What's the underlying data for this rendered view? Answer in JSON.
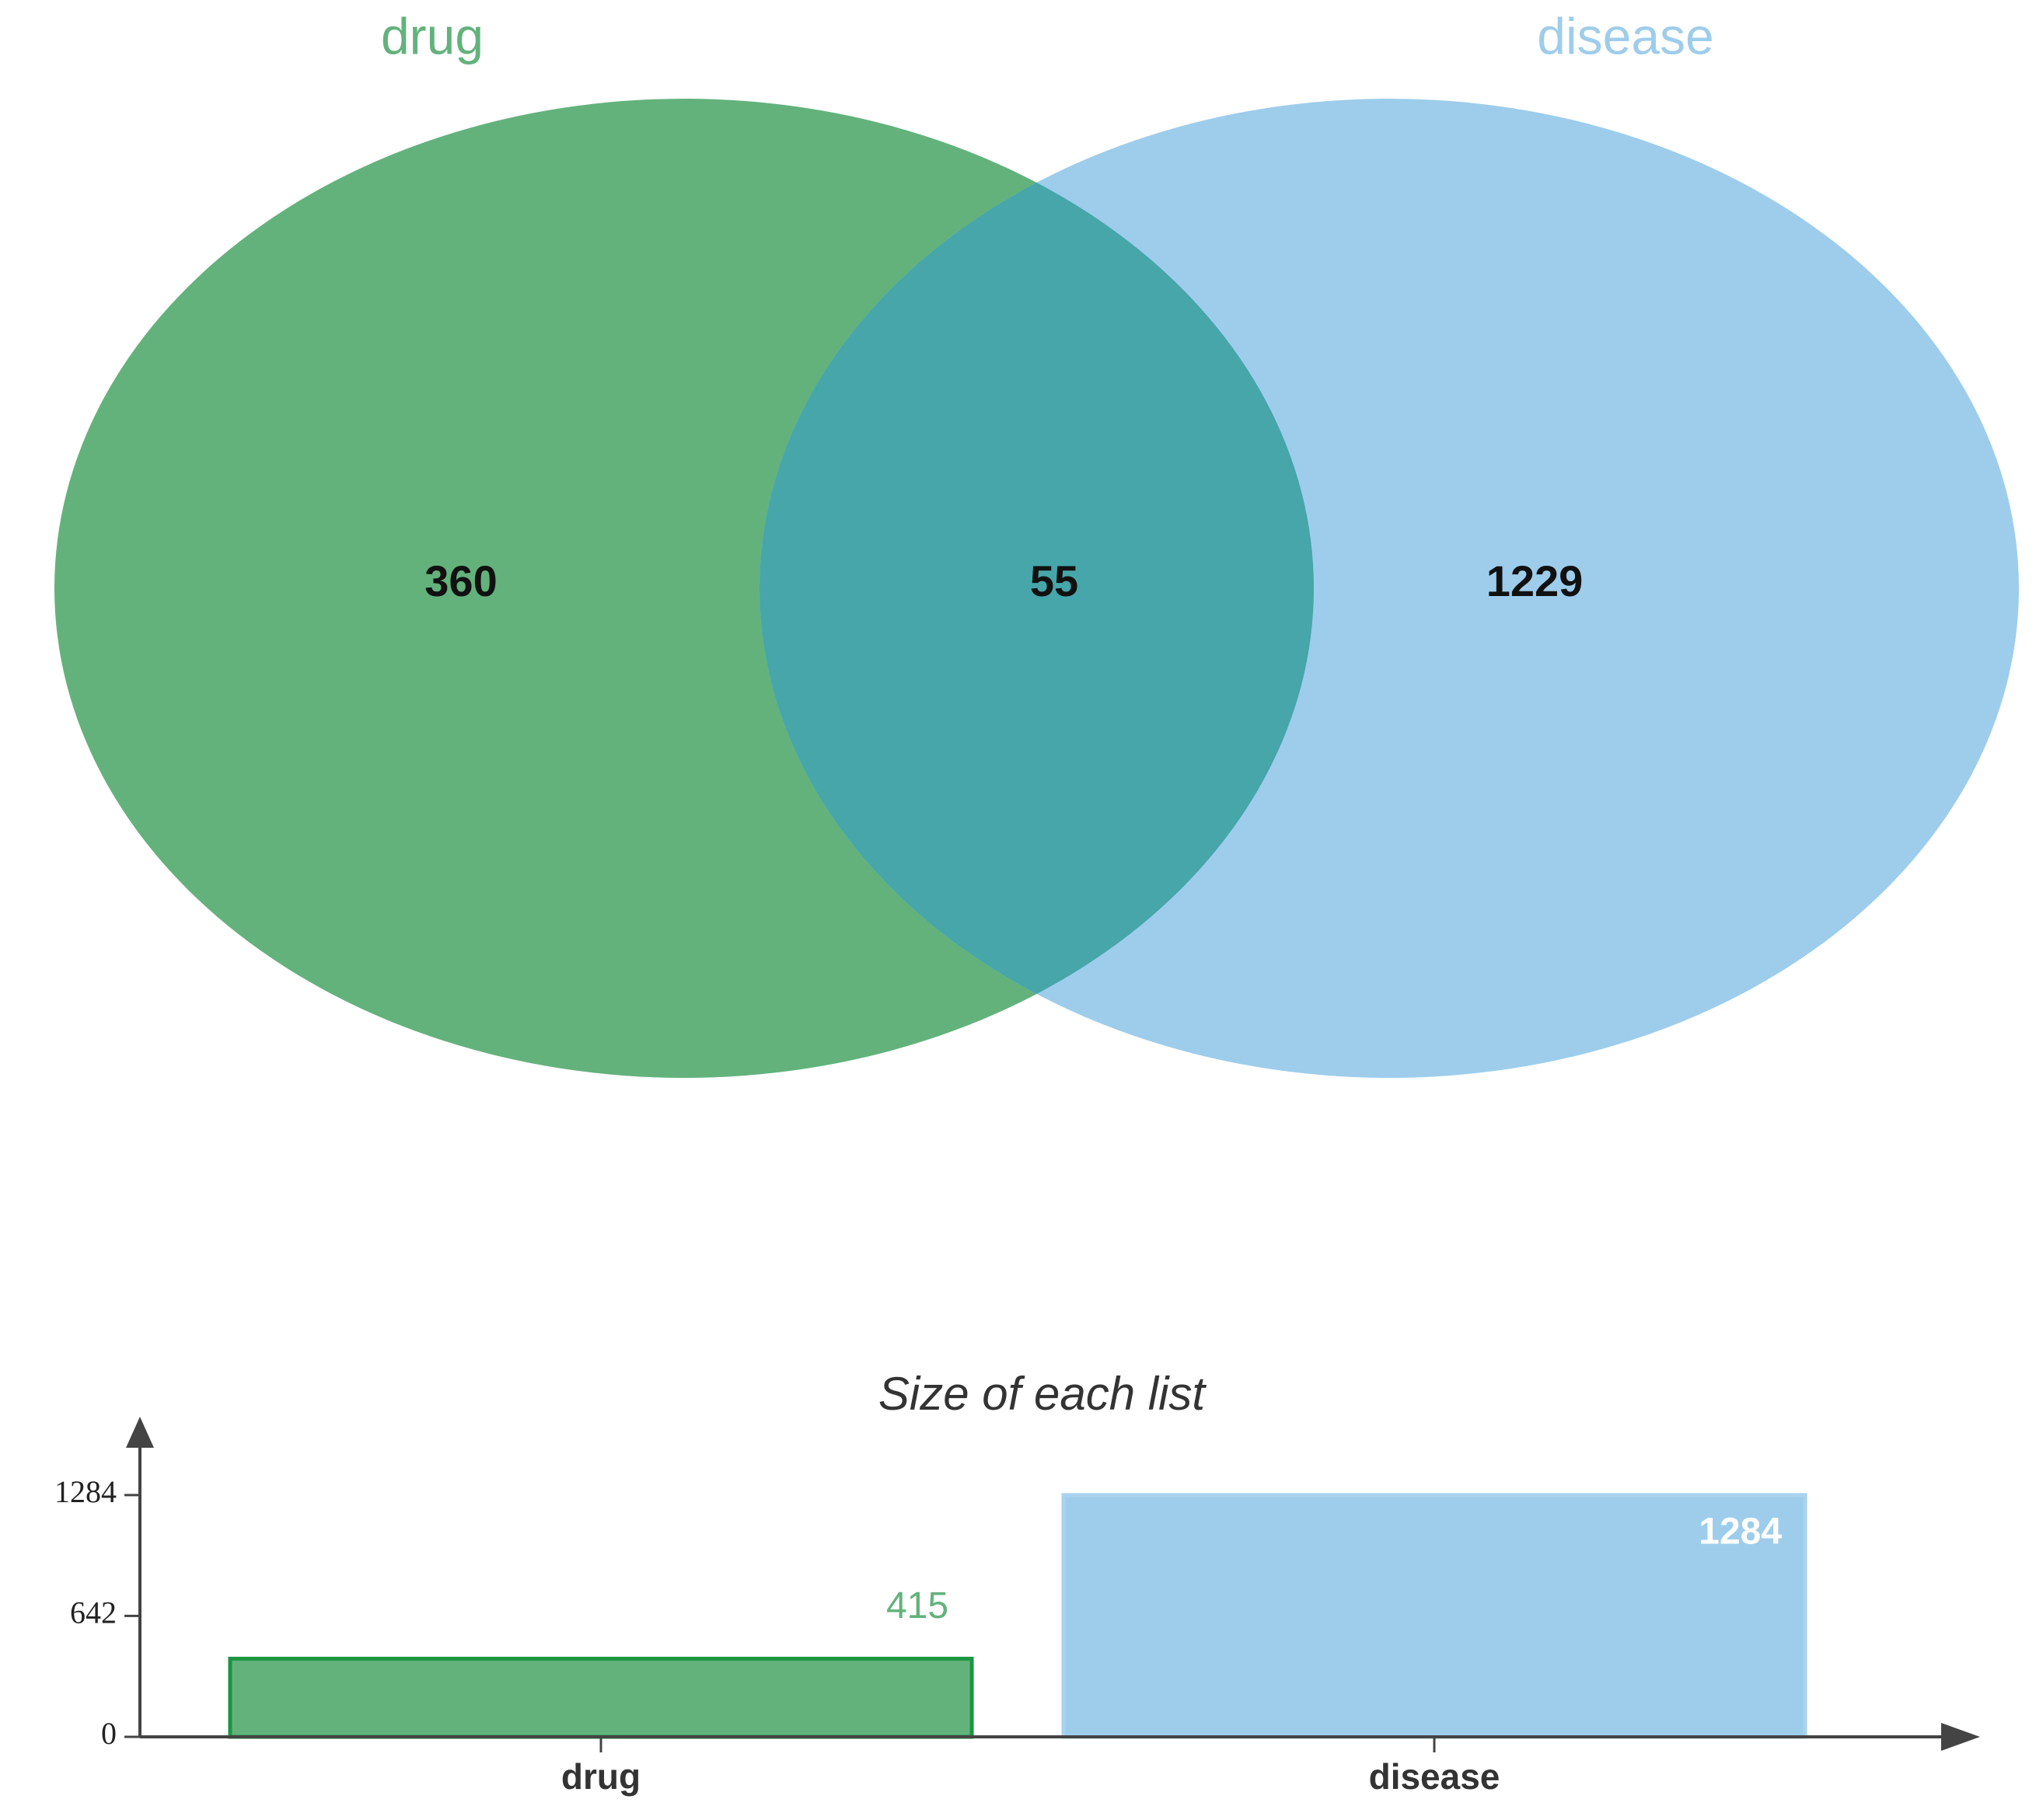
{
  "chart_data": [
    {
      "type": "venn",
      "sets": [
        {
          "name": "drug",
          "color": "#63b27c"
        },
        {
          "name": "disease",
          "color": "#9ecdeb"
        }
      ],
      "overlap_color": "#46a6aa",
      "regions": {
        "only_first": 360,
        "both": 55,
        "only_second": 1229
      }
    },
    {
      "type": "bar",
      "title": "Size of each list",
      "categories": [
        "drug",
        "disease"
      ],
      "values": [
        415,
        1284
      ],
      "colors": [
        "#63b27c",
        "#9ecdeb"
      ],
      "edge_colors": [
        "#1a9641",
        "#a9d4f0"
      ],
      "label_colors": [
        "#63b27c",
        "#ffffff"
      ],
      "ylim": [
        0,
        1700
      ],
      "yticks": [
        0,
        642,
        1284
      ]
    }
  ]
}
